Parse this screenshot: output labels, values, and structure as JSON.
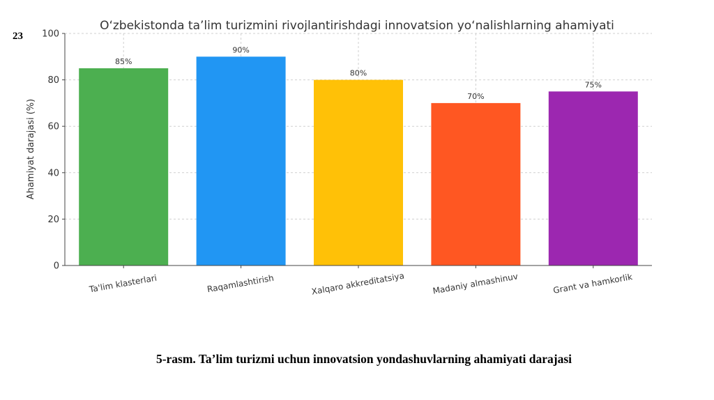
{
  "page_number": "23",
  "caption": "5-rasm. Ta’lim turizmi uchun innovatsion yondashuvlarning ahamiyati darajasi",
  "chart_data": {
    "type": "bar",
    "title": "O‘zbekistonda ta’lim turizmini rivojlantirishdagi innovatsion yo‘nalishlarning ahamiyati",
    "xlabel": "",
    "ylabel": "Ahamiyat darajasi (%)",
    "categories": [
      "Ta'lim klasterlari",
      "Raqamlashtirish",
      "Xalqaro akkreditatsiya",
      "Madaniy almashinuv",
      "Grant va hamkorlik"
    ],
    "values": [
      85,
      90,
      80,
      70,
      75
    ],
    "data_labels": [
      "85%",
      "90%",
      "80%",
      "70%",
      "75%"
    ],
    "colors": [
      "#4CAF50",
      "#2196F3",
      "#FFC107",
      "#FF5722",
      "#9C27B0"
    ],
    "ylim": [
      0,
      100
    ],
    "yticks": [
      0,
      20,
      40,
      60,
      80,
      100
    ],
    "grid": true
  }
}
